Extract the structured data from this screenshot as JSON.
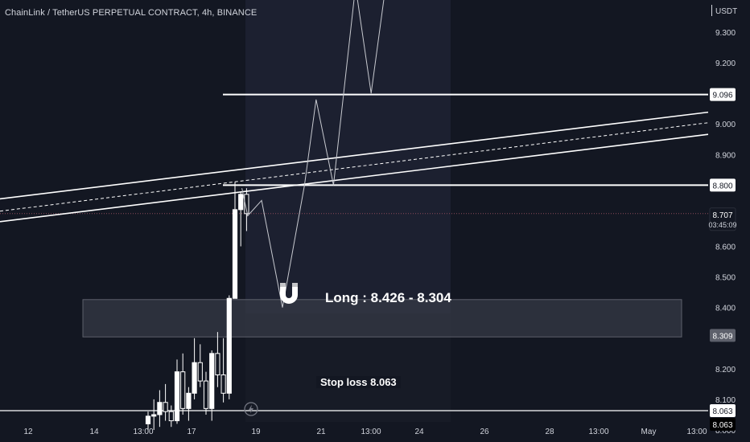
{
  "header": {
    "symbol_title": "ChainLink / TetherUS PERPETUAL CONTRACT, 4h, BINANCE",
    "currency": "USDT"
  },
  "annotations": {
    "zone_label": "Long : 8.426 - 8.304",
    "stop_label": "Stop loss 8.063"
  },
  "icons": {
    "magnet": "magnet-icon",
    "bolt": "lightning-bolt-icon"
  },
  "colors": {
    "background": "#131722",
    "axis_text": "#d1d4dc",
    "candle": "#ffffff",
    "zone_fill": "#363a45",
    "current_price_line": "#8b4a5a"
  },
  "chart_data": {
    "type": "candlestick",
    "symbol": "LINKUSDT.P",
    "timeframe": "4h",
    "ylim": [
      8.0,
      9.42
    ],
    "y_ticks": [
      "9.300",
      "9.200",
      "9.100",
      "9.000",
      "8.900",
      "8.800",
      "8.700",
      "8.600",
      "8.500",
      "8.400",
      "8.300",
      "8.200",
      "8.100",
      "8.000"
    ],
    "x_ticks": [
      "12",
      "14",
      "13:00",
      "17",
      "19",
      "21",
      "13:00",
      "24",
      "26",
      "28",
      "13:00",
      "May",
      "13:00"
    ],
    "price_badges": [
      {
        "value": "9.096",
        "style": "outline"
      },
      {
        "value": "8.800",
        "style": "outline"
      },
      {
        "value": "8.707",
        "sub": "03:45:09",
        "style": "current"
      },
      {
        "value": "8.309",
        "style": "grey"
      },
      {
        "value": "8.063",
        "style": "outline"
      },
      {
        "value": "8.063",
        "style": "dark"
      }
    ],
    "horizontal_levels": [
      9.096,
      8.8,
      8.063
    ],
    "current_price": 8.707,
    "entry_zone": [
      8.304,
      8.426
    ],
    "stop_loss": 8.063,
    "candles": [
      {
        "o": 8.02,
        "h": 8.06,
        "l": 8.0,
        "c": 8.045
      },
      {
        "o": 8.045,
        "h": 8.1,
        "l": 8.0,
        "c": 8.05
      },
      {
        "o": 8.05,
        "h": 8.13,
        "l": 8.01,
        "c": 8.09
      },
      {
        "o": 8.09,
        "h": 8.15,
        "l": 8.03,
        "c": 8.06
      },
      {
        "o": 8.06,
        "h": 8.08,
        "l": 8.01,
        "c": 8.03
      },
      {
        "o": 8.03,
        "h": 8.23,
        "l": 8.02,
        "c": 8.19
      },
      {
        "o": 8.19,
        "h": 8.25,
        "l": 8.05,
        "c": 8.07
      },
      {
        "o": 8.07,
        "h": 8.14,
        "l": 8.03,
        "c": 8.12
      },
      {
        "o": 8.12,
        "h": 8.3,
        "l": 8.1,
        "c": 8.22
      },
      {
        "o": 8.22,
        "h": 8.28,
        "l": 8.14,
        "c": 8.16
      },
      {
        "o": 8.16,
        "h": 8.19,
        "l": 8.05,
        "c": 8.07
      },
      {
        "o": 8.07,
        "h": 8.26,
        "l": 8.03,
        "c": 8.25
      },
      {
        "o": 8.25,
        "h": 8.32,
        "l": 8.14,
        "c": 8.18
      },
      {
        "o": 8.18,
        "h": 8.3,
        "l": 8.09,
        "c": 8.12
      },
      {
        "o": 8.12,
        "h": 8.44,
        "l": 8.1,
        "c": 8.43
      },
      {
        "o": 8.43,
        "h": 8.81,
        "l": 8.43,
        "c": 8.72
      },
      {
        "o": 8.72,
        "h": 8.78,
        "l": 8.6,
        "c": 8.77
      },
      {
        "o": 8.77,
        "h": 8.79,
        "l": 8.65,
        "c": 8.707
      }
    ],
    "projection_path": [
      {
        "i": 16.2,
        "p": 8.79
      },
      {
        "i": 17.2,
        "p": 8.7
      },
      {
        "i": 19.6,
        "p": 8.75
      },
      {
        "i": 23.2,
        "p": 8.4
      },
      {
        "i": 27.0,
        "p": 8.8
      },
      {
        "i": 29.0,
        "p": 9.08
      },
      {
        "i": 32.0,
        "p": 8.8
      },
      {
        "i": 35.8,
        "p": 9.45
      },
      {
        "i": 38.5,
        "p": 9.1
      },
      {
        "i": 41.0,
        "p": 9.45
      }
    ],
    "channel_lines": [
      {
        "start": [
          -1.0,
          8.812
        ],
        "end": [
          62.0,
          8.958
        ],
        "style": "solid"
      },
      {
        "start": [
          -1.0,
          8.773
        ],
        "end": [
          62.0,
          8.922
        ],
        "style": "dashed"
      },
      {
        "start": [
          -1.0,
          8.738
        ],
        "end": [
          62.0,
          8.885
        ],
        "style": "solid"
      }
    ]
  }
}
